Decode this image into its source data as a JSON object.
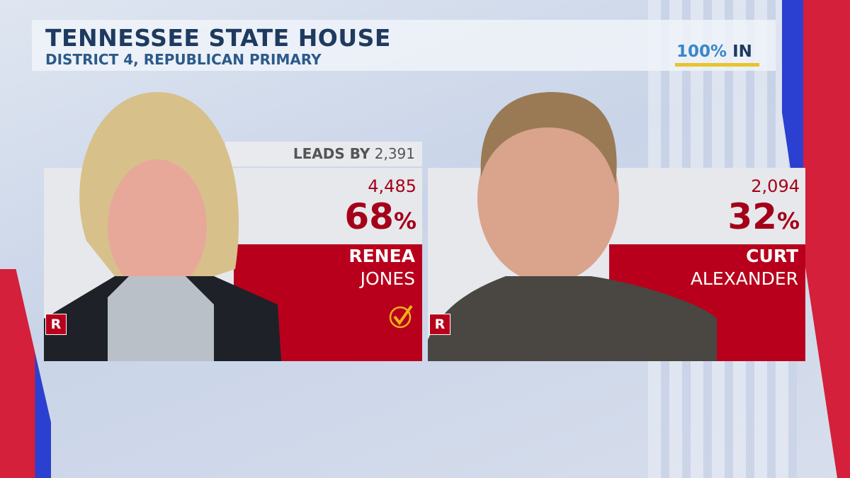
{
  "header": {
    "title": "TENNESSEE STATE HOUSE",
    "subtitle": "DISTRICT 4, REPUBLICAN PRIMARY"
  },
  "reporting": {
    "percent": "100%",
    "suffix": "IN",
    "value": 100
  },
  "lead": {
    "label": "LEADS BY",
    "margin": "2,391"
  },
  "candidates": [
    {
      "first": "RENEA",
      "last": "JONES",
      "votes": "4,485",
      "percent": "68",
      "percent_sign": "%",
      "party": "R",
      "winner": true
    },
    {
      "first": "CURT",
      "last": "ALEXANDER",
      "votes": "2,094",
      "percent": "32",
      "percent_sign": "%",
      "party": "R",
      "winner": false
    }
  ],
  "colors": {
    "party_red": "#b8001c",
    "title_navy": "#1e3a5f",
    "accent_yellow": "#e8c42a"
  }
}
